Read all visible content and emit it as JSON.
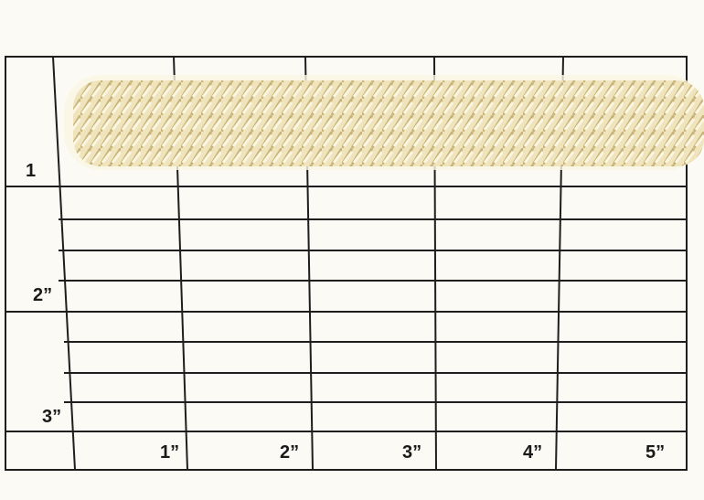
{
  "photo": {
    "subject": "braided trim on measurement grid",
    "colors": {
      "braid": "#efe4bb",
      "braid_shadow": "#c9b57c",
      "grid_line": "#1e1e1e",
      "paper": "#fbfaf5"
    }
  },
  "row_labels": [
    "1",
    "2”",
    "3”"
  ],
  "column_labels": [
    "1”",
    "2”",
    "3”",
    "4”",
    "5”"
  ]
}
